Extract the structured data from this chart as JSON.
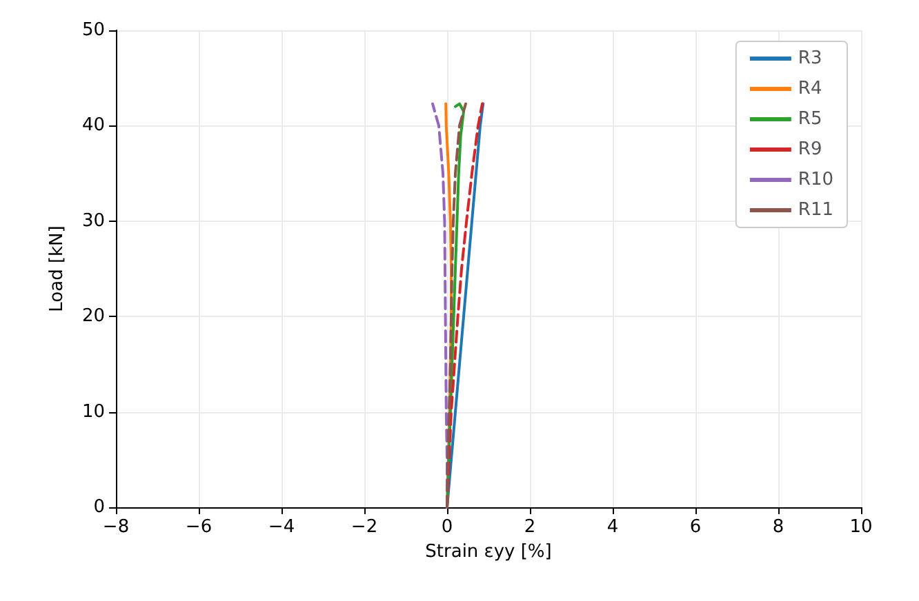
{
  "chart_data": {
    "type": "line",
    "xlabel": "Strain εyy [%]",
    "ylabel": "Load [kN]",
    "xlim": [
      -8,
      10
    ],
    "ylim": [
      0,
      50
    ],
    "xticks": [
      -8,
      -6,
      -4,
      -2,
      0,
      2,
      4,
      6,
      8,
      10
    ],
    "yticks": [
      0,
      10,
      20,
      30,
      40,
      50
    ],
    "grid": true,
    "legend": "top right",
    "marker": "none",
    "series": [
      {
        "name": "R3",
        "color": "#1f77b4",
        "line_style": "solid",
        "x": [
          0,
          0.1,
          0.2,
          0.3,
          0.4,
          0.5,
          0.6,
          0.7,
          0.8,
          0.87
        ],
        "values": [
          0,
          5,
          10,
          15,
          20,
          25,
          30,
          35,
          40,
          42.3
        ]
      },
      {
        "name": "R4",
        "color": "#ff7f0e",
        "line_style": "solid",
        "x": [
          0,
          0.03,
          0.06,
          0.08,
          0.1,
          0.1,
          0.08,
          0.04,
          -0.02,
          -0.03
        ],
        "values": [
          0,
          5,
          10,
          15,
          20,
          25,
          30,
          35,
          40,
          42.3
        ]
      },
      {
        "name": "R5",
        "color": "#2ca02c",
        "line_style": "solid",
        "x": [
          0,
          0.04,
          0.08,
          0.12,
          0.16,
          0.2,
          0.24,
          0.28,
          0.33,
          0.4,
          0.3,
          0.2
        ],
        "values": [
          0,
          5,
          10,
          15,
          20,
          25,
          30,
          35,
          39,
          41.5,
          42.3,
          42
        ]
      },
      {
        "name": "R9",
        "color": "#d62728",
        "line_style": "dashed",
        "x": [
          0,
          0.05,
          0.1,
          0.18,
          0.26,
          0.35,
          0.47,
          0.6,
          0.75,
          0.85
        ],
        "values": [
          0,
          5,
          10,
          15,
          20,
          25,
          30,
          35,
          40,
          42.3
        ]
      },
      {
        "name": "R10",
        "color": "#9467bd",
        "line_style": "dashed",
        "x": [
          0,
          0,
          -0.02,
          -0.03,
          -0.04,
          -0.05,
          -0.06,
          -0.1,
          -0.2,
          -0.35
        ],
        "values": [
          0,
          5,
          10,
          15,
          20,
          25,
          30,
          35,
          40,
          42.3
        ]
      },
      {
        "name": "R11",
        "color": "#8c564b",
        "line_style": "dashed",
        "x": [
          0,
          0.02,
          0.05,
          0.08,
          0.1,
          0.12,
          0.15,
          0.2,
          0.3,
          0.45
        ],
        "values": [
          0,
          5,
          10,
          15,
          20,
          25,
          30,
          35,
          40,
          42.3
        ]
      }
    ]
  }
}
